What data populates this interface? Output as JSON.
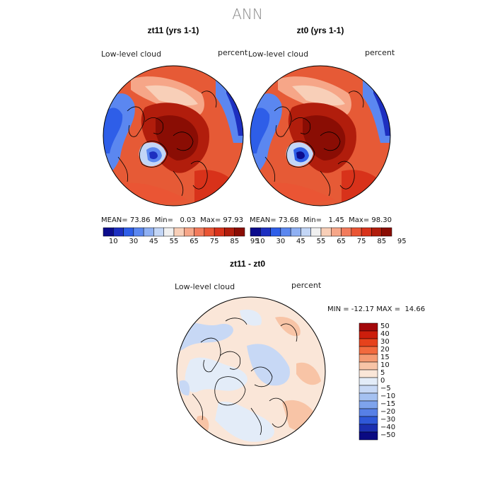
{
  "title": "ANN",
  "panels": [
    {
      "id": "zt11",
      "title": "zt11 (yrs 1-1)",
      "variable": "Low-level cloud",
      "units": "percent",
      "mean_label": "MEAN=",
      "mean": "73.86",
      "min_label": "Min=",
      "min": "0.03",
      "max_label": "Max=",
      "max": "97.93"
    },
    {
      "id": "zt0",
      "title": "zt0 (yrs 1-1)",
      "variable": "Low-level cloud",
      "units": "percent",
      "mean_label": "MEAN=",
      "mean": "73.68",
      "min_label": "Min=",
      "min": "1.45",
      "max_label": "Max=",
      "max": "98.30"
    }
  ],
  "diff": {
    "title": "zt11 - zt0",
    "variable": "Low-level cloud",
    "units": "percent",
    "minmax": "MIN = -12.17 MAX =  14.66"
  },
  "colorbar_abs": {
    "colors": [
      "#0c0c8c",
      "#1d2fc0",
      "#2e5ee8",
      "#5b87f0",
      "#8fb0f3",
      "#c3d6f6",
      "#f0f0f0",
      "#f8cfb8",
      "#f6a688",
      "#f27b5c",
      "#ea5534",
      "#d8321a",
      "#b11d0c",
      "#8a0d04"
    ],
    "labels": [
      "10",
      "30",
      "45",
      "55",
      "65",
      "75",
      "85",
      "95"
    ]
  },
  "colorbar_diff": {
    "colors": [
      "#a3080a",
      "#cc1e0c",
      "#e6421c",
      "#f26a3e",
      "#f59a72",
      "#f8c4a6",
      "#fae6d8",
      "#e3ecf8",
      "#c7d8f5",
      "#a5c1f1",
      "#7ea3ec",
      "#5780e6",
      "#2f58d8",
      "#1b2fb0",
      "#0a0a82"
    ],
    "labels": [
      "50",
      "40",
      "30",
      "20",
      "15",
      "10",
      "5",
      "0",
      "−5",
      "−10",
      "−15",
      "−20",
      "−30",
      "−40",
      "−50"
    ]
  }
}
